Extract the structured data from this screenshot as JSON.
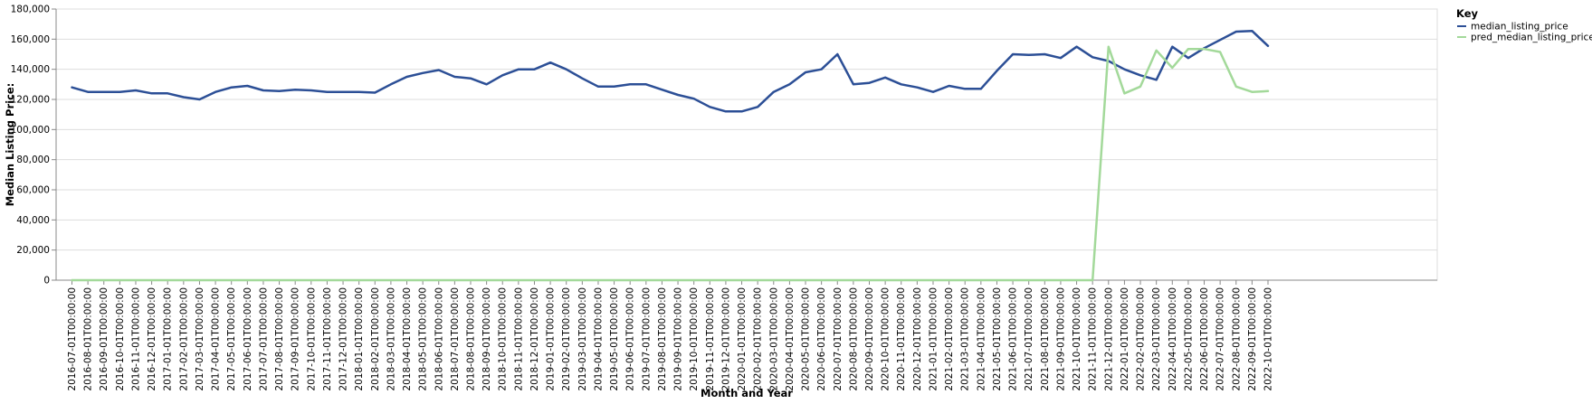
{
  "chart_data": {
    "type": "line",
    "xlabel": "Month and Year",
    "ylabel": "Median Listing Price:",
    "ylim": [
      0,
      180000
    ],
    "y_ticks": [
      "0",
      "20,000",
      "40,000",
      "60,000",
      "80,000",
      "100,000",
      "120,000",
      "140,000",
      "160,000",
      "180,000"
    ],
    "grid": "horizontal",
    "legend": {
      "title": "Key",
      "placement": "top-right"
    },
    "categories": [
      "2016-07-01T00:00:00",
      "2016-08-01T00:00:00",
      "2016-09-01T00:00:00",
      "2016-10-01T00:00:00",
      "2016-11-01T00:00:00",
      "2016-12-01T00:00:00",
      "2017-01-01T00:00:00",
      "2017-02-01T00:00:00",
      "2017-03-01T00:00:00",
      "2017-04-01T00:00:00",
      "2017-05-01T00:00:00",
      "2017-06-01T00:00:00",
      "2017-07-01T00:00:00",
      "2017-08-01T00:00:00",
      "2017-09-01T00:00:00",
      "2017-10-01T00:00:00",
      "2017-11-01T00:00:00",
      "2017-12-01T00:00:00",
      "2018-01-01T00:00:00",
      "2018-02-01T00:00:00",
      "2018-03-01T00:00:00",
      "2018-04-01T00:00:00",
      "2018-05-01T00:00:00",
      "2018-06-01T00:00:00",
      "2018-07-01T00:00:00",
      "2018-08-01T00:00:00",
      "2018-09-01T00:00:00",
      "2018-10-01T00:00:00",
      "2018-11-01T00:00:00",
      "2018-12-01T00:00:00",
      "2019-01-01T00:00:00",
      "2019-02-01T00:00:00",
      "2019-03-01T00:00:00",
      "2019-04-01T00:00:00",
      "2019-05-01T00:00:00",
      "2019-06-01T00:00:00",
      "2019-07-01T00:00:00",
      "2019-08-01T00:00:00",
      "2019-09-01T00:00:00",
      "2019-10-01T00:00:00",
      "2019-11-01T00:00:00",
      "2019-12-01T00:00:00",
      "2020-01-01T00:00:00",
      "2020-02-01T00:00:00",
      "2020-03-01T00:00:00",
      "2020-04-01T00:00:00",
      "2020-05-01T00:00:00",
      "2020-06-01T00:00:00",
      "2020-07-01T00:00:00",
      "2020-08-01T00:00:00",
      "2020-09-01T00:00:00",
      "2020-10-01T00:00:00",
      "2020-11-01T00:00:00",
      "2020-12-01T00:00:00",
      "2021-01-01T00:00:00",
      "2021-02-01T00:00:00",
      "2021-03-01T00:00:00",
      "2021-04-01T00:00:00",
      "2021-05-01T00:00:00",
      "2021-06-01T00:00:00",
      "2021-07-01T00:00:00",
      "2021-08-01T00:00:00",
      "2021-09-01T00:00:00",
      "2021-10-01T00:00:00",
      "2021-11-01T00:00:00",
      "2021-12-01T00:00:00",
      "2022-01-01T00:00:00",
      "2022-02-01T00:00:00",
      "2022-03-01T00:00:00",
      "2022-04-01T00:00:00",
      "2022-05-01T00:00:00",
      "2022-06-01T00:00:00",
      "2022-07-01T00:00:00",
      "2022-08-01T00:00:00",
      "2022-09-01T00:00:00",
      "2022-10-01T00:00:00"
    ],
    "series": [
      {
        "name": "median_listing_price",
        "color": "#2c4f96",
        "values": [
          128000,
          125000,
          125000,
          125000,
          126000,
          124000,
          124000,
          121500,
          120000,
          125000,
          128000,
          129000,
          126000,
          125500,
          126500,
          126000,
          125000,
          125000,
          125000,
          124500,
          130000,
          135000,
          137500,
          139500,
          135000,
          134000,
          130000,
          136000,
          140000,
          140000,
          144500,
          140000,
          134000,
          128500,
          128500,
          130000,
          130000,
          126500,
          123000,
          120500,
          115000,
          112000,
          112000,
          115000,
          125000,
          130000,
          138000,
          140000,
          150000,
          130000,
          131000,
          134500,
          130000,
          128000,
          125000,
          129000,
          127000,
          127000,
          139000,
          150000,
          149500,
          150000,
          147500,
          155000,
          148000,
          145500,
          140000,
          136000,
          133000,
          155000,
          147500,
          154000,
          159500,
          165000,
          165500,
          155500
        ],
        "stroke_width": 2.5
      },
      {
        "name": "pred_median_listing_price",
        "color": "#a3d99a",
        "values": [
          0,
          0,
          0,
          0,
          0,
          0,
          0,
          0,
          0,
          0,
          0,
          0,
          0,
          0,
          0,
          0,
          0,
          0,
          0,
          0,
          0,
          0,
          0,
          0,
          0,
          0,
          0,
          0,
          0,
          0,
          0,
          0,
          0,
          0,
          0,
          0,
          0,
          0,
          0,
          0,
          0,
          0,
          0,
          0,
          0,
          0,
          0,
          0,
          0,
          0,
          0,
          0,
          0,
          0,
          0,
          0,
          0,
          0,
          0,
          0,
          0,
          0,
          0,
          0,
          0,
          155000,
          124000,
          128500,
          152500,
          141000,
          153500,
          153500,
          151500,
          128500,
          125000,
          125500
        ],
        "stroke_width": 2.5
      }
    ]
  }
}
